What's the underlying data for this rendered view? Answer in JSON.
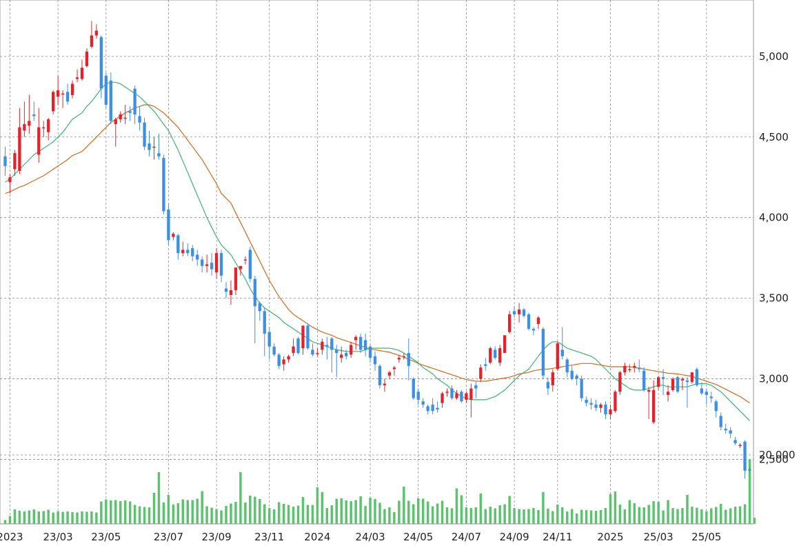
{
  "chart_data": {
    "type": "candlestick",
    "colors": {
      "up": "#e4222b",
      "down": "#3d8ee5",
      "ma_short": "#3cb371",
      "ma_long": "#d2691e",
      "volume": "#5cc26e",
      "grid": "#888888"
    },
    "price_axis": {
      "ylim": [
        2100,
        5350
      ],
      "ticks": [
        5000,
        4500,
        4000,
        3500,
        3000,
        2500
      ],
      "tick_labels": [
        "5,000",
        "4,500",
        "4,000",
        "3,500",
        "3,000",
        "2,500"
      ]
    },
    "volume_axis": {
      "ylim": [
        0,
        24000
      ],
      "ticks": [
        20000
      ],
      "tick_labels": [
        "20,000"
      ]
    },
    "x_labels": [
      "2023",
      "23/03",
      "23/05",
      "23/07",
      "23/09",
      "23/11",
      "2024",
      "24/03",
      "24/05",
      "24/07",
      "24/09",
      "24/11",
      "2025",
      "25/03",
      "25/05"
    ],
    "x_label_index": [
      1,
      11,
      21,
      34,
      44,
      55,
      65,
      76,
      86,
      96,
      106,
      115,
      126,
      136,
      146
    ],
    "candles": [
      [
        4380,
        4440,
        4260,
        4320
      ],
      [
        4220,
        4270,
        4150,
        4250
      ],
      [
        4300,
        4420,
        4260,
        4400
      ],
      [
        4290,
        4680,
        4270,
        4560
      ],
      [
        4540,
        4720,
        4500,
        4580
      ],
      [
        4570,
        4760,
        4520,
        4600
      ],
      [
        4640,
        4720,
        4600,
        4630
      ],
      [
        4390,
        4680,
        4340,
        4560
      ],
      [
        4560,
        4600,
        4500,
        4560
      ],
      [
        4530,
        4620,
        4480,
        4610
      ],
      [
        4660,
        4790,
        4640,
        4780
      ],
      [
        4750,
        4880,
        4700,
        4790
      ],
      [
        4770,
        4790,
        4680,
        4770
      ],
      [
        4780,
        4830,
        4700,
        4720
      ],
      [
        4760,
        4850,
        4740,
        4830
      ],
      [
        4860,
        4920,
        4840,
        4870
      ],
      [
        4860,
        4980,
        4850,
        4930
      ],
      [
        4940,
        5050,
        4930,
        5030
      ],
      [
        5060,
        5220,
        5050,
        5130
      ],
      [
        5130,
        5200,
        5110,
        5160
      ],
      [
        5120,
        5130,
        4740,
        4800
      ],
      [
        4880,
        4900,
        4680,
        4700
      ],
      [
        4850,
        4900,
        4580,
        4600
      ],
      [
        4580,
        4620,
        4440,
        4610
      ],
      [
        4610,
        4660,
        4590,
        4640
      ],
      [
        4620,
        4700,
        4580,
        4620
      ],
      [
        4660,
        4690,
        4600,
        4650
      ],
      [
        4800,
        4820,
        4580,
        4640
      ],
      [
        4630,
        4690,
        4540,
        4590
      ],
      [
        4590,
        4620,
        4420,
        4440
      ],
      [
        4460,
        4540,
        4380,
        4420
      ],
      [
        4440,
        4500,
        4360,
        4440
      ],
      [
        4400,
        4520,
        4360,
        4380
      ],
      [
        4370,
        4390,
        4020,
        4040
      ],
      [
        4050,
        4080,
        3830,
        3860
      ],
      [
        3880,
        3910,
        3860,
        3900
      ],
      [
        3890,
        3900,
        3740,
        3780
      ],
      [
        3780,
        3850,
        3760,
        3800
      ],
      [
        3800,
        3840,
        3760,
        3780
      ],
      [
        3810,
        3830,
        3730,
        3760
      ],
      [
        3770,
        3800,
        3700,
        3740
      ],
      [
        3740,
        3760,
        3660,
        3700
      ],
      [
        3700,
        3770,
        3660,
        3710
      ],
      [
        3720,
        3780,
        3640,
        3680
      ],
      [
        3660,
        3810,
        3620,
        3780
      ],
      [
        3780,
        3800,
        3600,
        3640
      ],
      [
        3560,
        3600,
        3500,
        3540
      ],
      [
        3520,
        3610,
        3460,
        3550
      ],
      [
        3550,
        3690,
        3520,
        3690
      ],
      [
        3680,
        3700,
        3640,
        3700
      ],
      [
        3740,
        3760,
        3710,
        3740
      ],
      [
        3800,
        3820,
        3600,
        3620
      ],
      [
        3620,
        3640,
        3220,
        3450
      ],
      [
        3470,
        3480,
        3360,
        3420
      ],
      [
        3420,
        3440,
        3140,
        3280
      ],
      [
        3290,
        3320,
        3120,
        3200
      ],
      [
        3200,
        3220,
        3140,
        3150
      ],
      [
        3150,
        3160,
        3060,
        3080
      ],
      [
        3090,
        3140,
        3050,
        3120
      ],
      [
        3120,
        3150,
        3100,
        3140
      ],
      [
        3160,
        3250,
        3140,
        3200
      ],
      [
        3250,
        3260,
        3150,
        3160
      ],
      [
        3190,
        3330,
        3150,
        3330
      ],
      [
        3330,
        3340,
        3180,
        3190
      ],
      [
        3180,
        3220,
        3140,
        3150
      ],
      [
        3160,
        3190,
        3140,
        3160
      ],
      [
        3180,
        3250,
        3150,
        3230
      ],
      [
        3210,
        3260,
        3120,
        3200
      ],
      [
        3250,
        3260,
        3040,
        3180
      ],
      [
        3180,
        3210,
        3010,
        3160
      ],
      [
        3130,
        3200,
        3100,
        3150
      ],
      [
        3160,
        3180,
        3120,
        3140
      ],
      [
        3150,
        3230,
        3130,
        3210
      ],
      [
        3240,
        3270,
        3180,
        3260
      ],
      [
        3260,
        3280,
        3160,
        3180
      ],
      [
        3240,
        3280,
        3140,
        3180
      ],
      [
        3200,
        3210,
        3100,
        3130
      ],
      [
        3140,
        3170,
        3050,
        3090
      ],
      [
        3080,
        3090,
        2940,
        2960
      ],
      [
        2960,
        3000,
        2920,
        2970
      ],
      [
        3020,
        3050,
        3000,
        3040
      ],
      [
        3060,
        3080,
        3020,
        3070
      ],
      [
        3120,
        3150,
        3100,
        3130
      ],
      [
        3140,
        3160,
        3120,
        3140
      ],
      [
        3160,
        3250,
        2990,
        3080
      ],
      [
        3000,
        3010,
        2870,
        2880
      ],
      [
        2920,
        2940,
        2840,
        2870
      ],
      [
        2860,
        2880,
        2820,
        2840
      ],
      [
        2830,
        2840,
        2780,
        2800
      ],
      [
        2840,
        2880,
        2780,
        2800
      ],
      [
        2820,
        2860,
        2790,
        2810
      ],
      [
        2850,
        2920,
        2820,
        2910
      ],
      [
        2920,
        2940,
        2890,
        2920
      ],
      [
        2940,
        2960,
        2870,
        2880
      ],
      [
        2880,
        2930,
        2870,
        2910
      ],
      [
        2920,
        2930,
        2850,
        2860
      ],
      [
        2870,
        2920,
        2850,
        2910
      ],
      [
        2870,
        2970,
        2760,
        2940
      ],
      [
        2960,
        2980,
        2880,
        2940
      ],
      [
        3000,
        3090,
        2980,
        3070
      ],
      [
        3090,
        3130,
        3050,
        3080
      ],
      [
        3100,
        3200,
        3090,
        3190
      ],
      [
        3180,
        3200,
        3120,
        3130
      ],
      [
        3100,
        3210,
        3080,
        3190
      ],
      [
        3160,
        3270,
        3160,
        3270
      ],
      [
        3290,
        3420,
        3280,
        3400
      ],
      [
        3420,
        3450,
        3380,
        3400
      ],
      [
        3400,
        3470,
        3350,
        3430
      ],
      [
        3430,
        3440,
        3380,
        3390
      ],
      [
        3400,
        3410,
        3300,
        3310
      ],
      [
        3310,
        3320,
        3270,
        3300
      ],
      [
        3340,
        3390,
        3310,
        3380
      ],
      [
        3310,
        3320,
        3000,
        3020
      ],
      [
        2980,
        3010,
        2900,
        2940
      ],
      [
        2960,
        3060,
        2920,
        3040
      ],
      [
        3060,
        3230,
        3050,
        3220
      ],
      [
        3180,
        3320,
        3120,
        3140
      ],
      [
        3120,
        3130,
        3010,
        3040
      ],
      [
        3050,
        3080,
        2990,
        3000
      ],
      [
        3020,
        3030,
        2960,
        3000
      ],
      [
        3000,
        3020,
        2860,
        2880
      ],
      [
        2870,
        2890,
        2830,
        2850
      ],
      [
        2850,
        2880,
        2810,
        2840
      ],
      [
        2840,
        2870,
        2800,
        2820
      ],
      [
        2820,
        2850,
        2790,
        2840
      ],
      [
        2840,
        2860,
        2750,
        2780
      ],
      [
        2780,
        2840,
        2750,
        2810
      ],
      [
        2800,
        2930,
        2790,
        2920
      ],
      [
        2920,
        3050,
        2900,
        3040
      ],
      [
        3040,
        3100,
        3020,
        3080
      ],
      [
        3060,
        3090,
        3040,
        3060
      ],
      [
        3070,
        3100,
        3040,
        3080
      ],
      [
        3070,
        3120,
        3040,
        3060
      ],
      [
        3050,
        3070,
        2920,
        2930
      ],
      [
        2920,
        2950,
        2750,
        2930
      ],
      [
        2730,
        2990,
        2720,
        2930
      ],
      [
        2950,
        3020,
        2930,
        3010
      ],
      [
        3010,
        3060,
        2900,
        3000
      ],
      [
        2900,
        2960,
        2860,
        2920
      ],
      [
        2930,
        3010,
        2920,
        3000
      ],
      [
        3010,
        3020,
        2910,
        2920
      ],
      [
        2990,
        3010,
        2930,
        3000
      ],
      [
        2990,
        3010,
        2820,
        2980
      ],
      [
        2980,
        3040,
        2970,
        3040
      ],
      [
        3060,
        3070,
        2950,
        2960
      ],
      [
        2940,
        2980,
        2900,
        2910
      ],
      [
        2920,
        2940,
        2840,
        2900
      ],
      [
        2890,
        2920,
        2850,
        2880
      ],
      [
        2860,
        2870,
        2760,
        2800
      ],
      [
        2770,
        2790,
        2680,
        2700
      ],
      [
        2690,
        2720,
        2660,
        2680
      ],
      [
        2680,
        2700,
        2630,
        2660
      ],
      [
        2620,
        2640,
        2590,
        2600
      ],
      [
        2590,
        2600,
        2570,
        2590
      ],
      [
        2610,
        2620,
        2380,
        2430
      ],
      [
        2440,
        2450,
        2420,
        2430
      ]
    ],
    "ma_short": [
      4220,
      4240,
      4270,
      4300,
      4330,
      4360,
      4390,
      4410,
      4430,
      4450,
      4470,
      4500,
      4530,
      4570,
      4610,
      4650,
      4690,
      4720,
      4760,
      4800,
      4830,
      4840,
      4840,
      4830,
      4810,
      4790,
      4770,
      4750,
      4720,
      4690,
      4660,
      4620,
      4580,
      4540,
      4480,
      4420,
      4350,
      4280,
      4210,
      4140,
      4070,
      4000,
      3940,
      3880,
      3830,
      3770,
      3720,
      3670,
      3620,
      3560,
      3510,
      3470,
      3440,
      3420,
      3400,
      3380,
      3350,
      3330,
      3310,
      3290,
      3270,
      3250,
      3230,
      3220,
      3210,
      3200,
      3190,
      3180,
      3175,
      3170,
      3170,
      3170,
      3170,
      3180,
      3190,
      3190,
      3190,
      3190,
      3185,
      3175,
      3160,
      3140,
      3120,
      3100,
      3070,
      3050,
      3030,
      3000,
      2980,
      2960,
      2930,
      2910,
      2890,
      2880,
      2870,
      2870,
      2870,
      2870,
      2880,
      2890,
      2910,
      2930,
      2960,
      2990,
      3020,
      3060,
      3100,
      3140,
      3180,
      3210,
      3230,
      3230,
      3210,
      3190,
      3180,
      3170,
      3160,
      3150,
      3140,
      3120,
      3090,
      3060,
      3030,
      3000,
      2980,
      2960,
      2940,
      2930,
      2930,
      2930,
      2940,
      2950,
      2960,
      2960,
      2950,
      2950,
      2950,
      2950,
      2960,
      2970,
      2970,
      2970,
      2960,
      2940,
      2920,
      2890,
      2860,
      2830,
      2800,
      2770,
      2740
    ],
    "ma_long": [
      4150,
      4160,
      4175,
      4190,
      4200,
      4215,
      4230,
      4245,
      4260,
      4280,
      4300,
      4320,
      4340,
      4360,
      4385,
      4410,
      4440,
      4470,
      4500,
      4530,
      4560,
      4590,
      4610,
      4630,
      4650,
      4665,
      4680,
      4690,
      4700,
      4700,
      4690,
      4670,
      4650,
      4620,
      4590,
      4560,
      4520,
      4480,
      4440,
      4400,
      4360,
      4310,
      4260,
      4210,
      4150,
      4090,
      4030,
      3970,
      3910,
      3850,
      3790,
      3730,
      3670,
      3610,
      3560,
      3510,
      3470,
      3430,
      3400,
      3380,
      3360,
      3340,
      3320,
      3305,
      3290,
      3280,
      3270,
      3255,
      3245,
      3235,
      3225,
      3215,
      3205,
      3195,
      3185,
      3175,
      3170,
      3165,
      3155,
      3145,
      3135,
      3120,
      3110,
      3095,
      3085,
      3075,
      3065,
      3055,
      3045,
      3035,
      3025,
      3015,
      3005,
      2995,
      2990,
      2985,
      2985,
      2985,
      2990,
      2995,
      3000,
      3005,
      3010,
      3020,
      3030,
      3040,
      3050,
      3055,
      3060,
      3060,
      3065,
      3070,
      3075,
      3080,
      3085,
      3090,
      3095,
      3095,
      3095,
      3090,
      3085,
      3080,
      3075,
      3075,
      3075,
      3075,
      3075,
      3070,
      3065,
      3060,
      3055,
      3050,
      3045,
      3040,
      3035,
      3030,
      3025,
      3020,
      3015,
      3005,
      2995,
      2985,
      2975,
      2965,
      2950,
      2935,
      2920,
      2905,
      2890,
      2870,
      2850
    ],
    "volume": [
      1100,
      2300,
      4200,
      3800,
      3600,
      3900,
      4200,
      3600,
      3700,
      4100,
      3300,
      3700,
      3500,
      3600,
      3400,
      3300,
      3600,
      3500,
      3600,
      3300,
      6500,
      7100,
      6800,
      6900,
      6600,
      6800,
      6500,
      5500,
      5100,
      4900,
      4800,
      9000,
      15000,
      6200,
      8400,
      5600,
      6000,
      7100,
      6900,
      6900,
      7300,
      9500,
      5100,
      4700,
      4300,
      3900,
      5200,
      5900,
      6400,
      15000,
      6200,
      8200,
      7900,
      7200,
      5700,
      4600,
      4200,
      6300,
      5800,
      5500,
      5000,
      5300,
      7800,
      5500,
      5500,
      10600,
      9200,
      4600,
      5400,
      7300,
      7400,
      6800,
      6600,
      6900,
      8000,
      5200,
      7600,
      7200,
      6100,
      4300,
      4800,
      3400,
      6700,
      10800,
      6700,
      5700,
      7400,
      7300,
      6500,
      5100,
      5900,
      6700,
      4800,
      4500,
      10300,
      8300,
      4800,
      4600,
      4800,
      8800,
      4300,
      5000,
      4500,
      5400,
      5700,
      8100,
      4600,
      4300,
      4200,
      4300,
      4600,
      4000,
      9200,
      4400,
      3700,
      5600,
      4800,
      3600,
      4300,
      3000,
      4100,
      4000,
      3900,
      3800,
      4000,
      4600,
      8600,
      9400,
      5600,
      4200,
      6900,
      6000,
      4900,
      4800,
      5500,
      6600,
      6400,
      3900,
      6900,
      4600,
      4300,
      4600,
      8400,
      5000,
      4700,
      4200,
      3700,
      4500,
      4900,
      5800,
      4100,
      4500,
      5000,
      5100,
      5700,
      18800,
      1800
    ]
  }
}
